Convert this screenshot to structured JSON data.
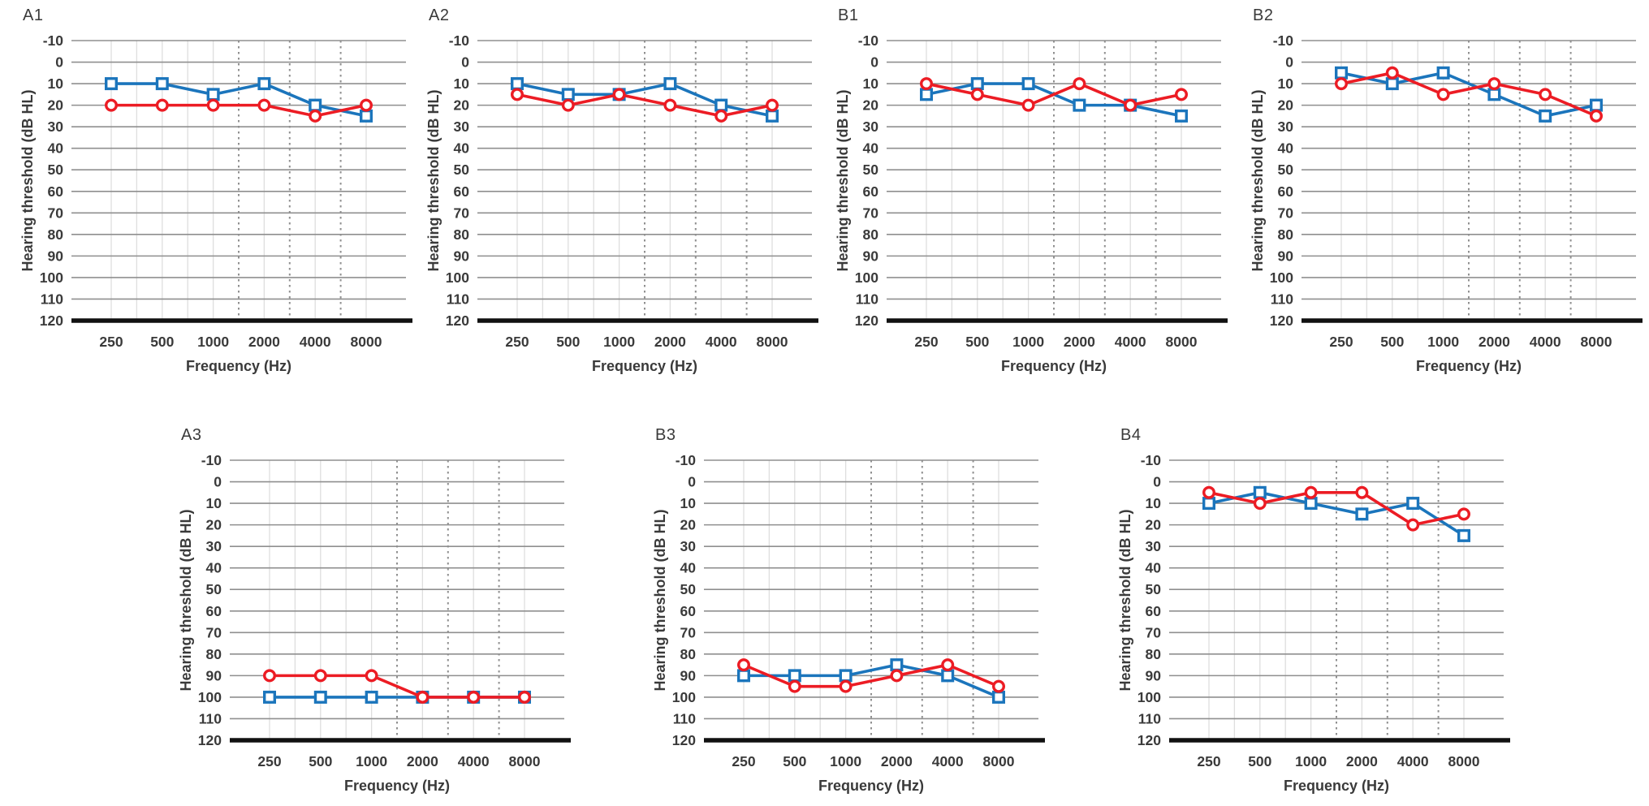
{
  "figure": {
    "description": "Seven audiogram panels, two series each (blue squares and red circles)",
    "panel_count": 7
  },
  "style": {
    "blue": "#1b75bc",
    "red": "#ec1c24",
    "grid_line": "#8f8f8f",
    "light_grid_line": "#dedede",
    "dashed_grid_line": "#909090",
    "axis_line": "#111111",
    "text": "#3a3a3a",
    "background": "#ffffff"
  },
  "chart_config": {
    "xlabel": "Frequency (Hz)",
    "ylabel": "Hearing threshold (dB HL)",
    "y_ticks": [
      -10,
      0,
      10,
      20,
      30,
      40,
      50,
      60,
      70,
      80,
      90,
      100,
      110,
      120
    ],
    "ymin": -10,
    "ymax": 120,
    "y_axis_inverted": true,
    "x_categories": [
      "250",
      "500",
      "1000",
      "2000",
      "4000",
      "8000"
    ],
    "light_vertical_positions": [
      0,
      0.5,
      1,
      1.5,
      2,
      3,
      4,
      5
    ],
    "dashed_vertical_positions": [
      2.5,
      3.5,
      4.5
    ],
    "grid": "on",
    "legend": "none"
  },
  "chart_data": [
    {
      "id": "A1",
      "type": "line",
      "title": "A1",
      "categories": [
        250,
        500,
        1000,
        2000,
        4000,
        8000
      ],
      "xlabel": "Frequency (Hz)",
      "ylabel": "Hearing threshold (dB HL)",
      "ylim": [
        -10,
        120
      ],
      "series": [
        {
          "name": "blue squares",
          "marker": "square",
          "color": "blue",
          "values": [
            10,
            10,
            15,
            10,
            20,
            25
          ]
        },
        {
          "name": "red circles",
          "marker": "circle",
          "color": "red",
          "values": [
            20,
            20,
            20,
            20,
            25,
            20
          ]
        }
      ]
    },
    {
      "id": "A2",
      "type": "line",
      "title": "A2",
      "categories": [
        250,
        500,
        1000,
        2000,
        4000,
        8000
      ],
      "xlabel": "Frequency (Hz)",
      "ylabel": "Hearing threshold (dB HL)",
      "ylim": [
        -10,
        120
      ],
      "series": [
        {
          "name": "blue squares",
          "marker": "square",
          "color": "blue",
          "values": [
            10,
            15,
            15,
            10,
            20,
            25
          ]
        },
        {
          "name": "red circles",
          "marker": "circle",
          "color": "red",
          "values": [
            15,
            20,
            15,
            20,
            25,
            20
          ]
        }
      ]
    },
    {
      "id": "B1",
      "type": "line",
      "title": "B1",
      "categories": [
        250,
        500,
        1000,
        2000,
        4000,
        8000
      ],
      "xlabel": "Frequency (Hz)",
      "ylabel": "Hearing threshold (dB HL)",
      "ylim": [
        -10,
        120
      ],
      "series": [
        {
          "name": "blue squares",
          "marker": "square",
          "color": "blue",
          "values": [
            15,
            10,
            10,
            20,
            20,
            25
          ]
        },
        {
          "name": "red circles",
          "marker": "circle",
          "color": "red",
          "values": [
            10,
            15,
            20,
            10,
            20,
            15
          ]
        }
      ]
    },
    {
      "id": "B2",
      "type": "line",
      "title": "B2",
      "categories": [
        250,
        500,
        1000,
        2000,
        4000,
        8000
      ],
      "xlabel": "Frequency (Hz)",
      "ylabel": "Hearing threshold (dB HL)",
      "ylim": [
        -10,
        120
      ],
      "series": [
        {
          "name": "blue squares",
          "marker": "square",
          "color": "blue",
          "values": [
            5,
            10,
            5,
            15,
            25,
            20
          ]
        },
        {
          "name": "red circles",
          "marker": "circle",
          "color": "red",
          "values": [
            10,
            5,
            15,
            10,
            15,
            25
          ]
        }
      ]
    },
    {
      "id": "A3",
      "type": "line",
      "title": "A3",
      "categories": [
        250,
        500,
        1000,
        2000,
        4000,
        8000
      ],
      "xlabel": "Frequency (Hz)",
      "ylabel": "Hearing threshold (dB HL)",
      "ylim": [
        -10,
        120
      ],
      "series": [
        {
          "name": "blue squares",
          "marker": "square",
          "color": "blue",
          "values": [
            100,
            100,
            100,
            100,
            100,
            100
          ]
        },
        {
          "name": "red circles",
          "marker": "circle",
          "color": "red",
          "values": [
            90,
            90,
            90,
            100,
            100,
            100
          ]
        }
      ]
    },
    {
      "id": "B3",
      "type": "line",
      "title": "B3",
      "categories": [
        250,
        500,
        1000,
        2000,
        4000,
        8000
      ],
      "xlabel": "Frequency (Hz)",
      "ylabel": "Hearing threshold (dB HL)",
      "ylim": [
        -10,
        120
      ],
      "series": [
        {
          "name": "blue squares",
          "marker": "square",
          "color": "blue",
          "values": [
            90,
            90,
            90,
            85,
            90,
            100
          ]
        },
        {
          "name": "red circles",
          "marker": "circle",
          "color": "red",
          "values": [
            85,
            95,
            95,
            90,
            85,
            95
          ]
        }
      ]
    },
    {
      "id": "B4",
      "type": "line",
      "title": "B4",
      "categories": [
        250,
        500,
        1000,
        2000,
        4000,
        8000
      ],
      "xlabel": "Frequency (Hz)",
      "ylabel": "Hearing threshold (dB HL)",
      "ylim": [
        -10,
        120
      ],
      "series": [
        {
          "name": "blue squares",
          "marker": "square",
          "color": "blue",
          "values": [
            10,
            5,
            10,
            15,
            10,
            25
          ]
        },
        {
          "name": "red circles",
          "marker": "circle",
          "color": "red",
          "values": [
            5,
            10,
            5,
            5,
            20,
            15
          ]
        }
      ]
    }
  ]
}
